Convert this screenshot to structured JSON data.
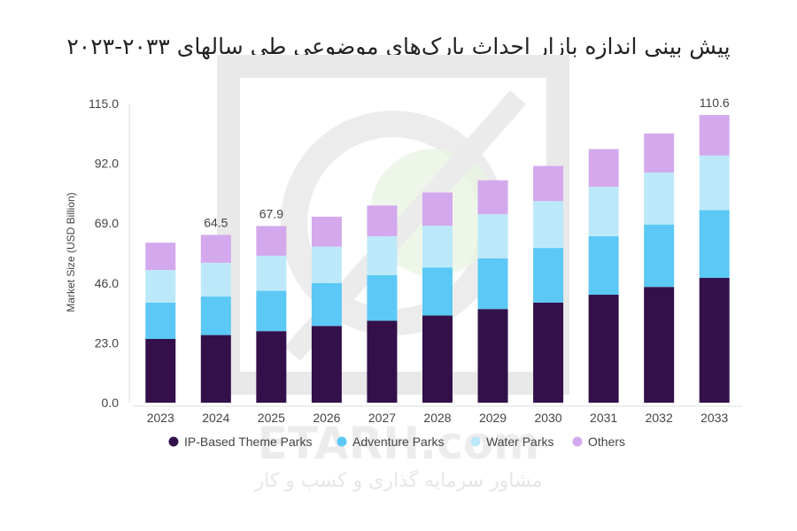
{
  "watermark": {
    "brand": "ETARH.com",
    "tagline": "مشاور سرمایه گذاری و کسب و کار",
    "color": "#e6e6e6"
  },
  "chart_data": {
    "type": "bar",
    "stacked": true,
    "title": "پیش بینی اندازه بازار احداث پارک‌های موضوعی طی سالهای ۲۰۳۳-۲۰۲۳",
    "xlabel": "",
    "ylabel": "Market Size (USD Billion)",
    "ylim": [
      0,
      115
    ],
    "y_ticks": [
      "0.0",
      "23.0",
      "46.0",
      "69.0",
      "92.0",
      "115.0"
    ],
    "grid": false,
    "legend_position": "bottom",
    "categories": [
      "2023",
      "2024",
      "2025",
      "2026",
      "2027",
      "2028",
      "2029",
      "2030",
      "2031",
      "2032",
      "2033"
    ],
    "series": [
      {
        "name": "IP-Based Theme Parks",
        "color": "#33104a",
        "values": [
          24.5,
          26,
          27.5,
          29.5,
          31.5,
          33.5,
          36,
          38.5,
          41.5,
          44.5,
          48
        ]
      },
      {
        "name": "Adventure Parks",
        "color": "#5bc8f5",
        "values": [
          14,
          14.8,
          15.5,
          16.5,
          17.5,
          18.5,
          19.5,
          21,
          22.5,
          24,
          26
        ]
      },
      {
        "name": "Water Parks",
        "color": "#bce9fa",
        "values": [
          12.5,
          13,
          13.5,
          14,
          15,
          16,
          17,
          18,
          19,
          20,
          21
        ]
      },
      {
        "name": "Others",
        "color": "#d3a8ec",
        "values": [
          10.5,
          10.7,
          11.4,
          11.5,
          11.8,
          12.8,
          13,
          13.5,
          14.5,
          15,
          15.6
        ]
      }
    ],
    "totals": [
      "",
      "64.5",
      "67.9",
      "",
      "",
      "",
      "",
      "",
      "",
      "",
      "110.6"
    ]
  }
}
